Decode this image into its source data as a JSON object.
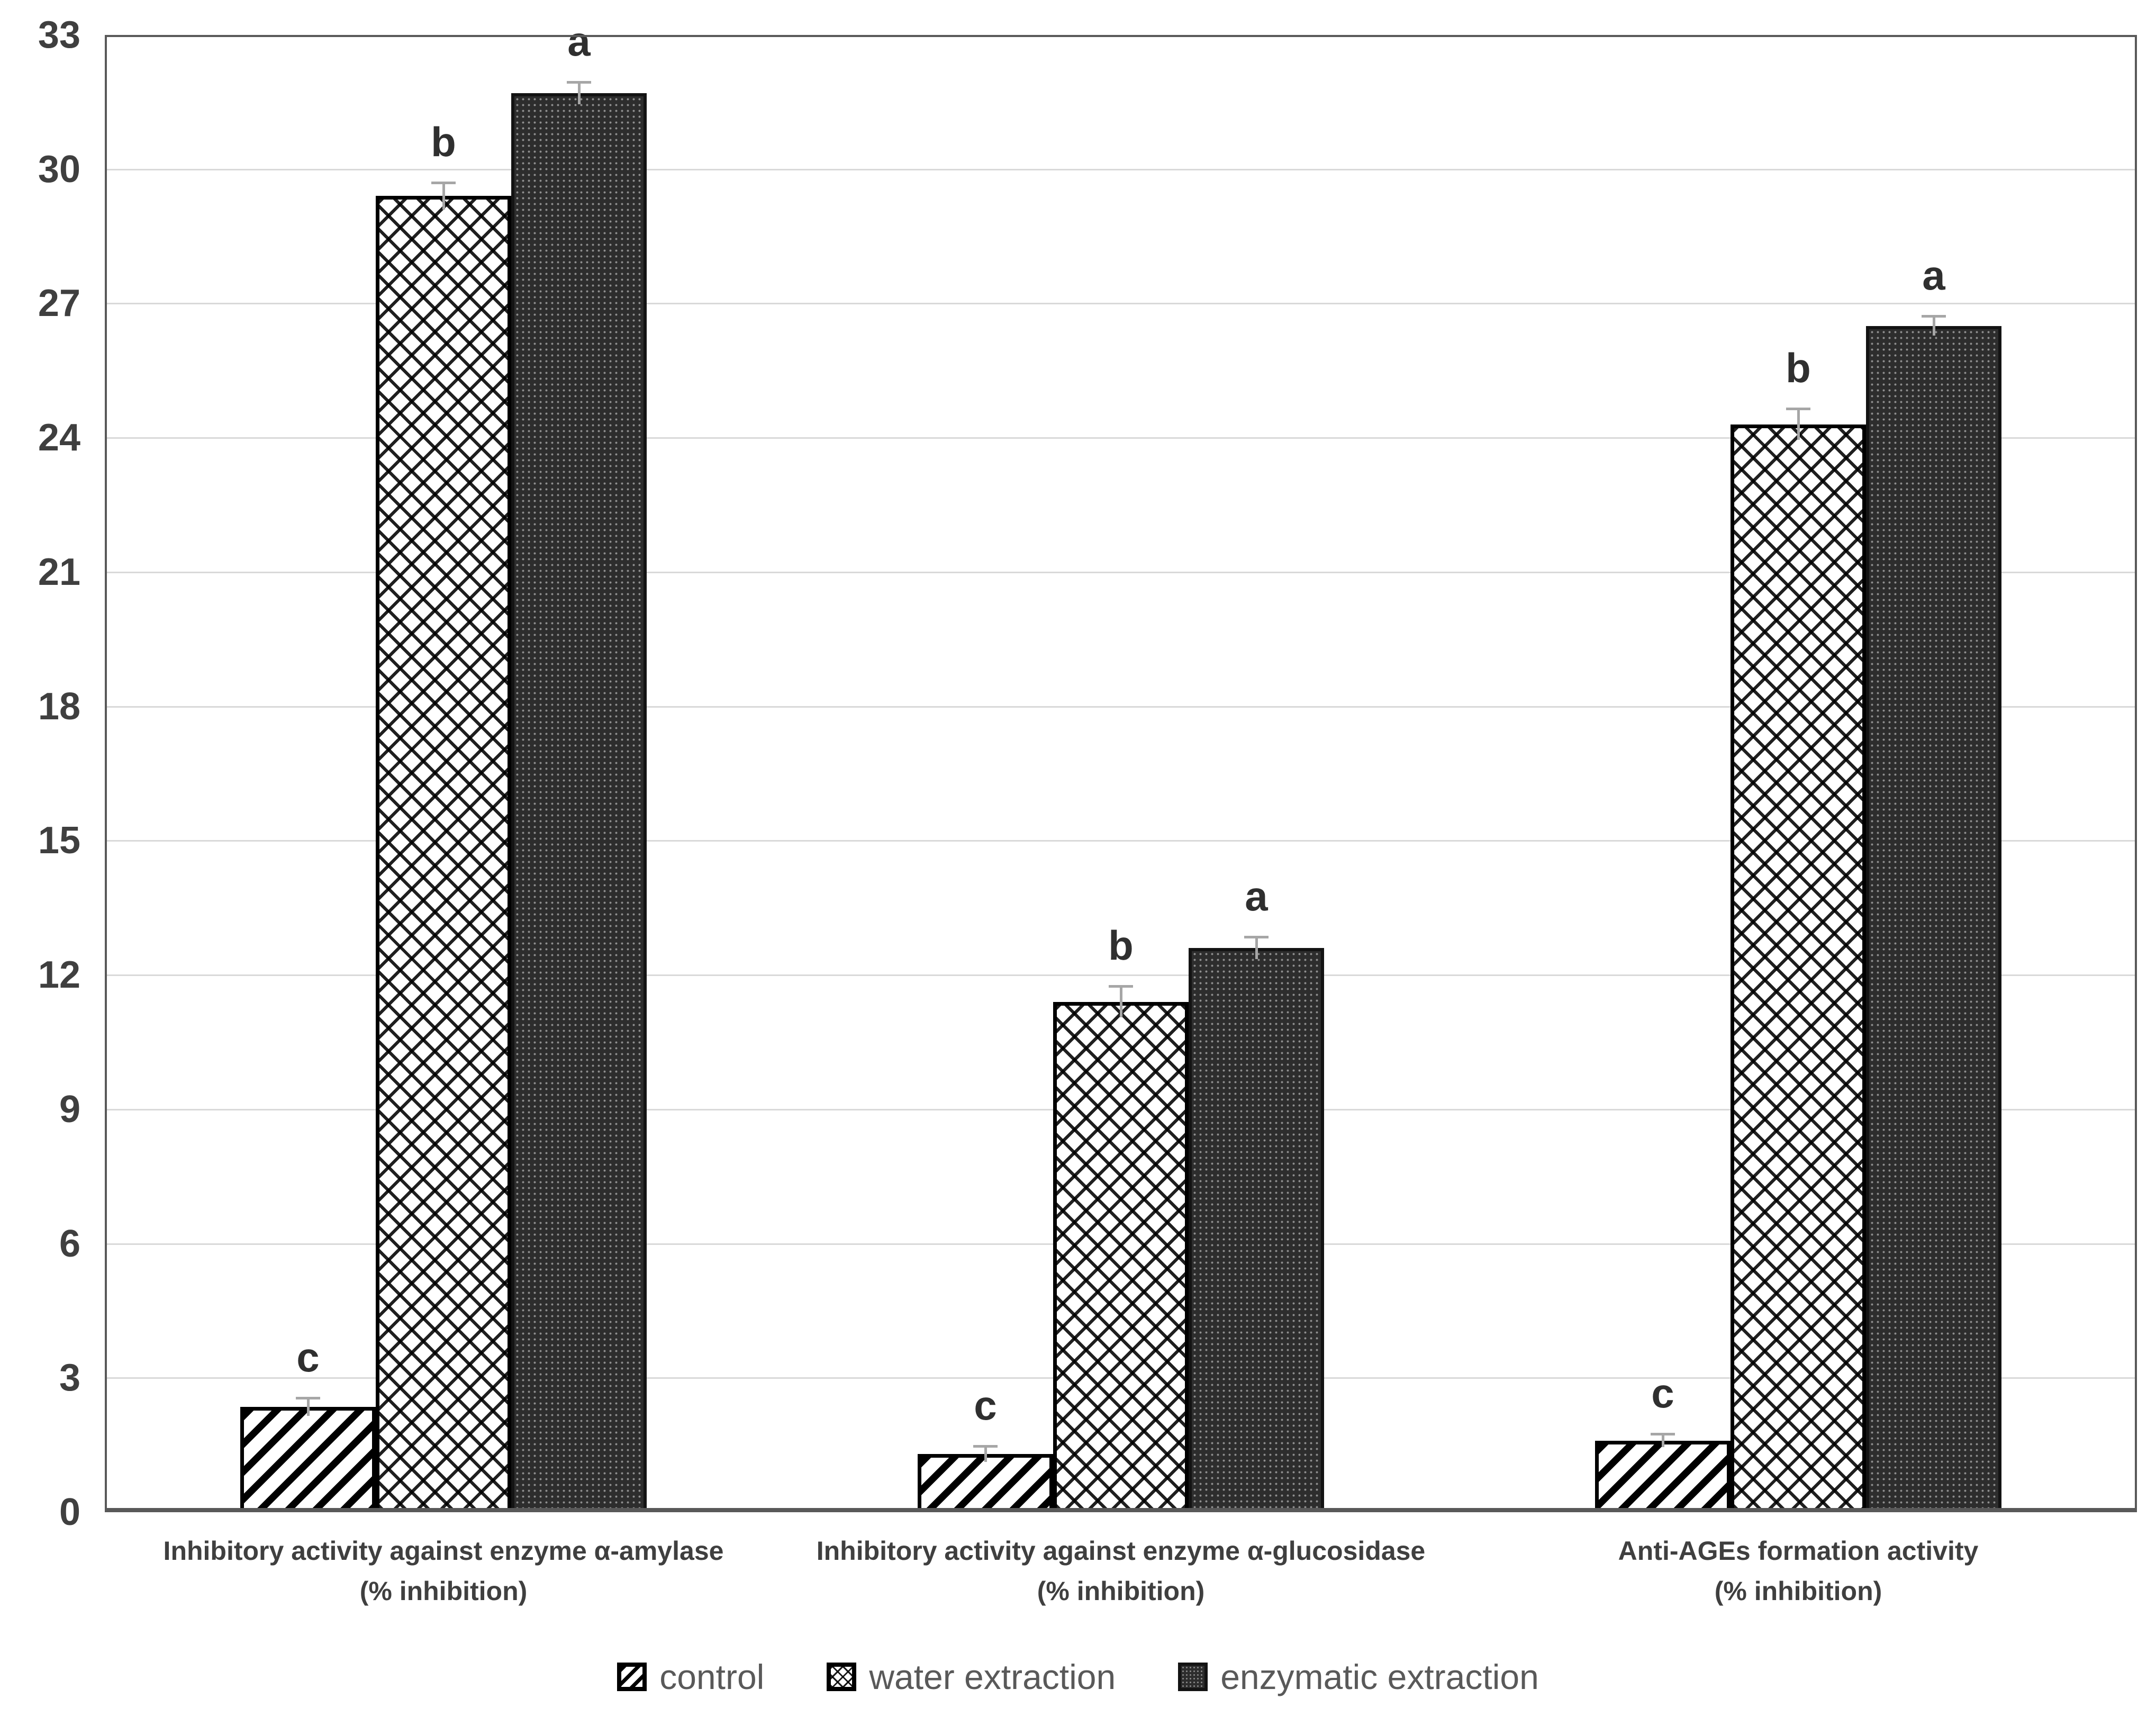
{
  "chart_data": {
    "type": "bar",
    "title": "",
    "xlabel": "",
    "ylabel": "",
    "ylim": [
      0,
      33
    ],
    "ytick_step": 3,
    "ytick_labels": [
      "0",
      "3",
      "6",
      "9",
      "12",
      "15",
      "18",
      "21",
      "24",
      "27",
      "30",
      "33"
    ],
    "grid": true,
    "legend_position": "bottom",
    "categories": [
      {
        "line1": "Inhibitory activity against enzyme α-amylase",
        "line2": "(% inhibition)"
      },
      {
        "line1": "Inhibitory activity against enzyme  α-glucosidase",
        "line2": "(% inhibition)"
      },
      {
        "line1": "Anti-AGEs formation activity",
        "line2": "(% inhibition)"
      }
    ],
    "series": [
      {
        "name": "control",
        "pattern": "control",
        "values": [
          2.35,
          1.3,
          1.6
        ],
        "errors": [
          0.2,
          0.18,
          0.15
        ],
        "letters": [
          "c",
          "c",
          "c"
        ]
      },
      {
        "name": "water extraction",
        "pattern": "water",
        "values": [
          29.4,
          11.4,
          24.3
        ],
        "errors": [
          0.3,
          0.35,
          0.35
        ],
        "letters": [
          "b",
          "b",
          "b"
        ]
      },
      {
        "name": "enzymatic extraction",
        "pattern": "enzymatic",
        "values": [
          31.7,
          12.6,
          26.5
        ],
        "errors": [
          0.25,
          0.25,
          0.22
        ],
        "letters": [
          "a",
          "a",
          "a"
        ]
      }
    ]
  },
  "colors": {
    "grid": "#d9d9d9",
    "axis_frame": "#595959",
    "tick_text": "#3f3f3f",
    "category_text": "#3f3f3f",
    "legend_text": "#595959",
    "letter_text": "#2f2f2f",
    "error_bar": "#a6a6a6",
    "enzymatic_fill": "#2d2d2d",
    "bar_stroke": "#000000"
  }
}
